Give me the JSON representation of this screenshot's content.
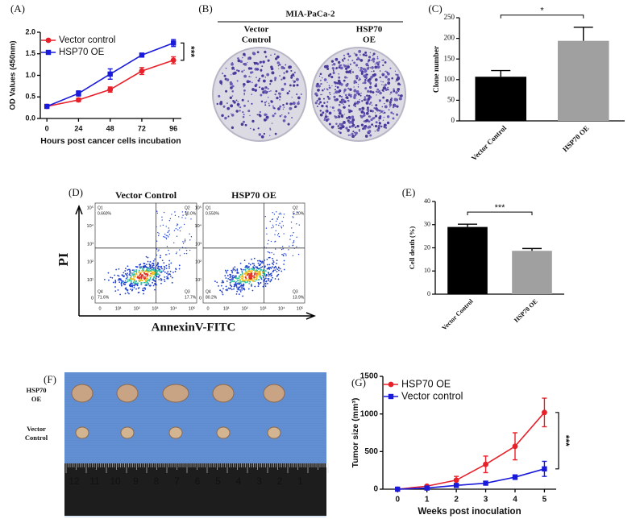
{
  "chart_data": [
    {
      "type": "line",
      "panel": "(A)",
      "x_label": "Hours post cancer cells incubation",
      "y_label": "OD Values (450nm)",
      "x": [
        0,
        24,
        48,
        72,
        96
      ],
      "xlim": [
        -5,
        102
      ],
      "xticks": [
        0,
        24,
        48,
        72,
        96
      ],
      "ylim": [
        0,
        2
      ],
      "yticks": [
        {
          "value": 0,
          "label": "0.0"
        },
        0.5,
        {
          "value": 1,
          "label": "1.0"
        },
        1.5,
        {
          "value": 2,
          "label": "2.0"
        }
      ],
      "legend": "upper left",
      "annotation": "***",
      "series": [
        {
          "name": "Vector control",
          "color": "#e8202a",
          "marker": "circle",
          "values": [
            0.28,
            0.43,
            0.67,
            1.1,
            1.35
          ],
          "errors": [
            0.02,
            0.04,
            0.06,
            0.08,
            0.08
          ]
        },
        {
          "name": "HSP70 OE",
          "color": "#1a1adb",
          "marker": "square",
          "values": [
            0.28,
            0.58,
            1.03,
            1.47,
            1.75
          ],
          "errors": [
            0.02,
            0.06,
            0.12,
            0.04,
            0.08
          ]
        }
      ]
    },
    {
      "type": "bar",
      "panel": "(C)",
      "y_label": "Clone number",
      "categories": [
        "Vector Control",
        "HSP70 OE"
      ],
      "values": [
        107,
        194
      ],
      "errors": [
        15,
        33
      ],
      "colors": [
        "#000000",
        "#a0a0a0"
      ],
      "ylim": [
        0,
        250
      ],
      "yticks": [
        0,
        50,
        100,
        150,
        200,
        250
      ],
      "annotation": "*"
    },
    {
      "type": "bar",
      "panel": "(E)",
      "y_label": "Cell death (%)",
      "categories": [
        "Vector Control",
        "HSP70 OE"
      ],
      "values": [
        29,
        18.7
      ],
      "errors": [
        1.2,
        1
      ],
      "colors": [
        "#000000",
        "#a0a0a0"
      ],
      "ylim": [
        0,
        40
      ],
      "yticks": [
        0,
        10,
        20,
        30,
        40
      ],
      "annotation": "***"
    },
    {
      "type": "line",
      "panel": "(G)",
      "x_label": "Weeks post inoculation",
      "y_label": "Tumor size (mm³)",
      "x": [
        0,
        1,
        2,
        3,
        4,
        5
      ],
      "xlim": [
        -0.5,
        5.4
      ],
      "xticks": [
        0,
        1,
        2,
        3,
        4,
        5
      ],
      "ylim": [
        0,
        1500
      ],
      "yticks": [
        0,
        500,
        1000,
        1500
      ],
      "legend": "upper left",
      "annotation": "***",
      "series": [
        {
          "name": "HSP70 OE",
          "color": "#e8202a",
          "marker": "circle",
          "values": [
            0,
            40,
            120,
            330,
            570,
            1020
          ],
          "errors": [
            0,
            10,
            50,
            110,
            180,
            190
          ]
        },
        {
          "name": "Vector control",
          "color": "#1a1adb",
          "marker": "square",
          "values": [
            0,
            15,
            50,
            80,
            160,
            270
          ],
          "errors": [
            0,
            5,
            10,
            15,
            30,
            100
          ]
        }
      ]
    }
  ],
  "colony_panel": {
    "panel": "(B)",
    "title": "MIA-PaCa-2",
    "labels": [
      [
        "Vector",
        "Control"
      ],
      [
        "HSP70",
        "OE"
      ]
    ]
  },
  "flow_panel": {
    "panel": "(D)",
    "y_label": "PI",
    "x_label": "AnnexinV-FITC",
    "axis_ticks": [
      "0",
      "10¹",
      "10²",
      "10³",
      "10⁴",
      "10⁵"
    ],
    "plots": [
      {
        "title": "Vector Control",
        "quadrants": [
          {
            "name": "Q1",
            "value": "0.660%"
          },
          {
            "name": "Q2",
            "value": "10.0%"
          },
          {
            "name": "Q4",
            "value": "71.6%"
          },
          {
            "name": "Q3",
            "value": "17.7%"
          }
        ]
      },
      {
        "title": "HSP70 OE",
        "quadrants": [
          {
            "name": "Q1",
            "value": "0.550%"
          },
          {
            "name": "Q2",
            "value": "5.20%"
          },
          {
            "name": "Q4",
            "value": "80.2%"
          },
          {
            "name": "Q3",
            "value": "13.9%"
          }
        ]
      }
    ]
  },
  "tumor_panel": {
    "panel": "(F)",
    "row_labels": [
      [
        "HSP70",
        "OE"
      ],
      [
        "Vector",
        "Control"
      ]
    ],
    "ruler": [
      12,
      11,
      10,
      9,
      8,
      7,
      6,
      5,
      4,
      3,
      2,
      1
    ]
  }
}
